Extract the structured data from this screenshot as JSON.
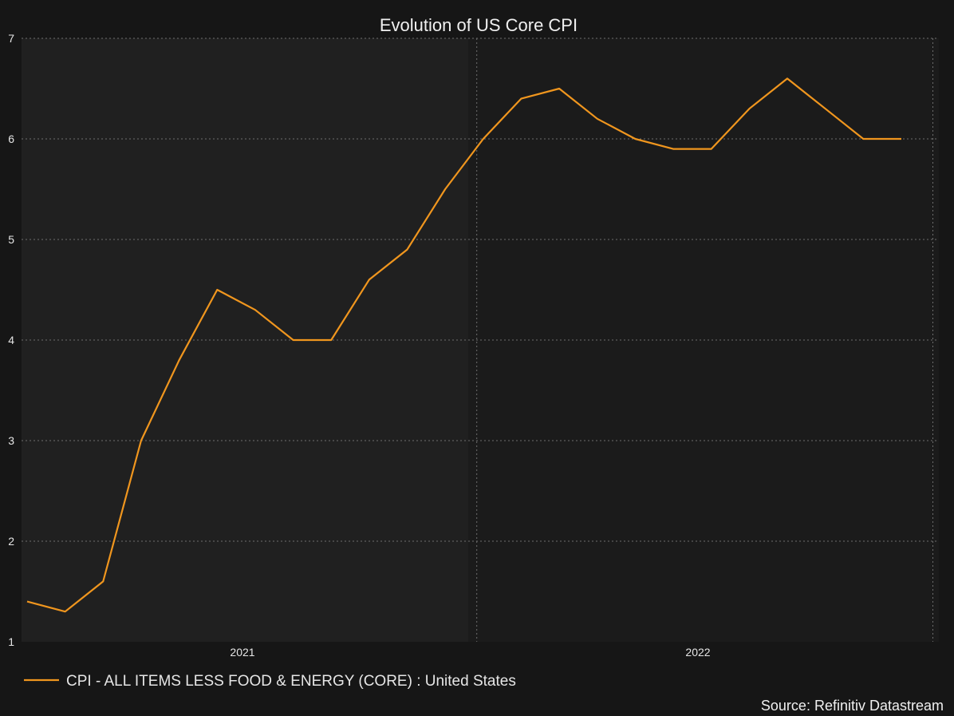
{
  "chart_data": {
    "type": "line",
    "title": "Evolution of US Core CPI",
    "xlabel": "",
    "ylabel": "",
    "ylim": [
      1,
      7
    ],
    "yticks": [
      1,
      2,
      3,
      4,
      5,
      6,
      7
    ],
    "x_tick_labels": [
      "2021",
      "2022"
    ],
    "grid": true,
    "legend_position": "bottom-left",
    "series": [
      {
        "name": "CPI - ALL ITEMS LESS FOOD & ENERGY (CORE) : United States",
        "color": "#f0961e",
        "x": [
          "2020-07",
          "2020-08",
          "2020-09",
          "2020-10",
          "2020-11",
          "2020-12",
          "2021-01",
          "2021-02",
          "2021-03",
          "2021-04",
          "2021-05",
          "2021-06",
          "2021-07",
          "2021-08",
          "2021-09",
          "2021-10",
          "2021-11",
          "2021-12",
          "2022-01",
          "2022-02",
          "2022-03",
          "2022-04",
          "2022-05",
          "2022-06"
        ],
        "values": [
          1.4,
          1.3,
          1.6,
          3.0,
          3.8,
          4.5,
          4.3,
          4.0,
          4.0,
          4.6,
          4.9,
          5.5,
          6.0,
          6.4,
          6.5,
          6.2,
          6.0,
          5.9,
          5.9,
          6.3,
          6.6,
          6.3,
          6.0,
          6.0
        ]
      }
    ],
    "source": "Source: Refinitiv Datastream"
  }
}
